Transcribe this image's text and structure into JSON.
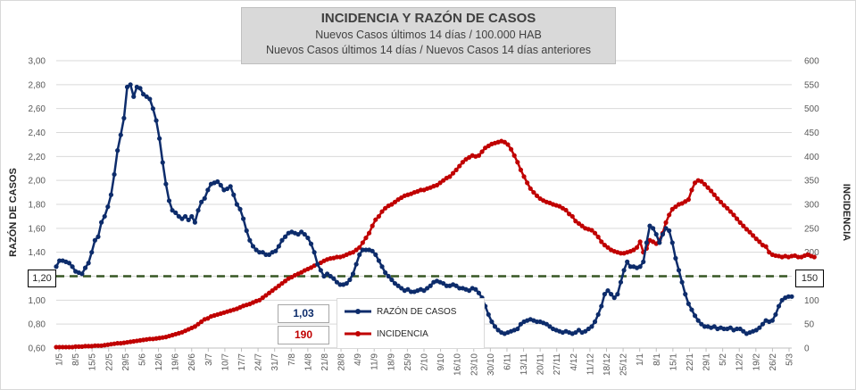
{
  "chart_data": {
    "type": "line",
    "title": "INCIDENCIA Y RAZÓN DE CASOS",
    "subtitle_1": "Nuevos Casos últimos 14 días / 100.000 HAB",
    "subtitle_2": "Nuevos Casos últimos 14 días / Nuevos Casos 14 días anteriores",
    "ylabel_left": "RAZÓN DE CASOS",
    "ylabel_right": "INCIDENCIA",
    "ylim_left": [
      0.6,
      3.0
    ],
    "ylim_right": [
      0,
      600
    ],
    "yticks_left": [
      "3,00",
      "2,80",
      "2,60",
      "2,40",
      "2,20",
      "2,00",
      "1,80",
      "1,60",
      "1,40",
      "1,20",
      "1,00",
      "0,80",
      "0,60"
    ],
    "yticks_right": [
      "600",
      "550",
      "500",
      "450",
      "400",
      "350",
      "300",
      "250",
      "200",
      "150",
      "100",
      "50",
      "0"
    ],
    "x_ticks": [
      "1/5",
      "8/5",
      "15/5",
      "22/5",
      "29/5",
      "5/6",
      "12/6",
      "19/6",
      "26/6",
      "3/7",
      "10/7",
      "17/7",
      "24/7",
      "31/7",
      "7/8",
      "14/8",
      "21/8",
      "28/8",
      "4/9",
      "11/9",
      "18/9",
      "25/9",
      "2/10",
      "9/10",
      "16/10",
      "23/10",
      "30/10",
      "6/11",
      "13/11",
      "20/11",
      "27/11",
      "4/12",
      "11/12",
      "18/12",
      "25/12",
      "1/1",
      "8/1",
      "15/1",
      "22/1",
      "29/1",
      "5/2",
      "12/2",
      "19/2",
      "26/2",
      "5/3"
    ],
    "reference_line": {
      "axis": "left",
      "value": 1.2,
      "left_label": "1,20",
      "right_label": "150"
    },
    "latest_ratio": "1,03",
    "latest_incidence": "190",
    "series": [
      {
        "name": "RAZÓN DE CASOS",
        "axis": "left",
        "color": "#0d2c6b",
        "values": [
          1.28,
          1.33,
          1.33,
          1.32,
          1.31,
          1.28,
          1.24,
          1.23,
          1.22,
          1.27,
          1.31,
          1.4,
          1.5,
          1.53,
          1.65,
          1.7,
          1.78,
          1.88,
          2.05,
          2.25,
          2.38,
          2.52,
          2.78,
          2.8,
          2.7,
          2.78,
          2.77,
          2.72,
          2.7,
          2.68,
          2.6,
          2.5,
          2.35,
          2.15,
          1.97,
          1.83,
          1.75,
          1.73,
          1.7,
          1.68,
          1.7,
          1.67,
          1.7,
          1.65,
          1.75,
          1.82,
          1.85,
          1.92,
          1.97,
          1.98,
          1.99,
          1.96,
          1.92,
          1.93,
          1.95,
          1.88,
          1.8,
          1.76,
          1.68,
          1.58,
          1.5,
          1.45,
          1.42,
          1.4,
          1.4,
          1.38,
          1.38,
          1.4,
          1.41,
          1.45,
          1.5,
          1.53,
          1.56,
          1.57,
          1.56,
          1.55,
          1.57,
          1.55,
          1.52,
          1.47,
          1.4,
          1.3,
          1.25,
          1.2,
          1.22,
          1.2,
          1.18,
          1.15,
          1.13,
          1.13,
          1.14,
          1.17,
          1.22,
          1.3,
          1.38,
          1.42,
          1.42,
          1.42,
          1.41,
          1.38,
          1.33,
          1.28,
          1.23,
          1.2,
          1.17,
          1.14,
          1.12,
          1.1,
          1.08,
          1.09,
          1.07,
          1.07,
          1.08,
          1.09,
          1.08,
          1.1,
          1.12,
          1.15,
          1.16,
          1.15,
          1.14,
          1.12,
          1.12,
          1.13,
          1.12,
          1.1,
          1.1,
          1.09,
          1.08,
          1.1,
          1.09,
          1.06,
          1.02,
          0.95,
          0.88,
          0.82,
          0.78,
          0.75,
          0.73,
          0.72,
          0.73,
          0.74,
          0.75,
          0.76,
          0.8,
          0.82,
          0.83,
          0.84,
          0.83,
          0.82,
          0.82,
          0.81,
          0.8,
          0.78,
          0.76,
          0.75,
          0.74,
          0.73,
          0.74,
          0.73,
          0.72,
          0.73,
          0.75,
          0.73,
          0.74,
          0.76,
          0.78,
          0.82,
          0.88,
          0.95,
          1.05,
          1.08,
          1.05,
          1.02,
          1.05,
          1.15,
          1.25,
          1.32,
          1.28,
          1.28,
          1.27,
          1.28,
          1.32,
          1.48,
          1.62,
          1.6,
          1.55,
          1.48,
          1.55,
          1.6,
          1.58,
          1.48,
          1.35,
          1.25,
          1.15,
          1.05,
          0.97,
          0.92,
          0.87,
          0.83,
          0.8,
          0.78,
          0.78,
          0.77,
          0.78,
          0.76,
          0.77,
          0.76,
          0.76,
          0.77,
          0.75,
          0.76,
          0.76,
          0.74,
          0.72,
          0.73,
          0.74,
          0.75,
          0.77,
          0.8,
          0.83,
          0.82,
          0.83,
          0.88,
          0.95,
          1.0,
          1.02,
          1.03,
          1.03
        ]
      },
      {
        "name": "INCIDENCIA",
        "axis": "right",
        "color": "#c00000",
        "values": [
          2,
          2,
          2,
          2,
          2,
          2,
          3,
          3,
          3,
          4,
          4,
          4,
          5,
          5,
          5,
          6,
          7,
          8,
          9,
          10,
          10,
          11,
          12,
          13,
          14,
          15,
          16,
          17,
          18,
          19,
          19,
          20,
          21,
          22,
          23,
          25,
          27,
          29,
          31,
          33,
          36,
          39,
          42,
          45,
          50,
          55,
          60,
          62,
          66,
          68,
          70,
          72,
          74,
          76,
          78,
          80,
          82,
          85,
          88,
          90,
          92,
          95,
          98,
          100,
          105,
          110,
          115,
          120,
          125,
          130,
          135,
          140,
          145,
          148,
          152,
          155,
          158,
          162,
          165,
          168,
          172,
          175,
          178,
          182,
          185,
          187,
          188,
          190,
          190,
          192,
          195,
          198,
          200,
          205,
          210,
          220,
          230,
          240,
          255,
          268,
          275,
          285,
          292,
          297,
          300,
          305,
          310,
          314,
          318,
          320,
          322,
          325,
          327,
          330,
          330,
          333,
          335,
          338,
          340,
          345,
          350,
          355,
          358,
          365,
          372,
          380,
          388,
          394,
          398,
          402,
          400,
          402,
          410,
          418,
          422,
          426,
          428,
          430,
          432,
          430,
          425,
          415,
          402,
          388,
          372,
          358,
          345,
          333,
          325,
          318,
          312,
          308,
          305,
          303,
          300,
          298,
          296,
          292,
          288,
          280,
          275,
          265,
          260,
          255,
          250,
          248,
          246,
          240,
          232,
          222,
          215,
          210,
          205,
          202,
          200,
          198,
          198,
          200,
          202,
          205,
          210,
          222,
          200,
          208,
          225,
          222,
          218,
          225,
          240,
          262,
          278,
          290,
          295,
          300,
          302,
          306,
          310,
          330,
          345,
          350,
          348,
          342,
          335,
          328,
          320,
          312,
          305,
          298,
          292,
          285,
          278,
          270,
          262,
          255,
          248,
          242,
          235,
          228,
          222,
          215,
          212,
          200,
          195,
          193,
          192,
          190,
          192,
          190,
          192,
          193,
          190,
          190,
          193,
          195,
          192,
          190
        ]
      }
    ]
  }
}
